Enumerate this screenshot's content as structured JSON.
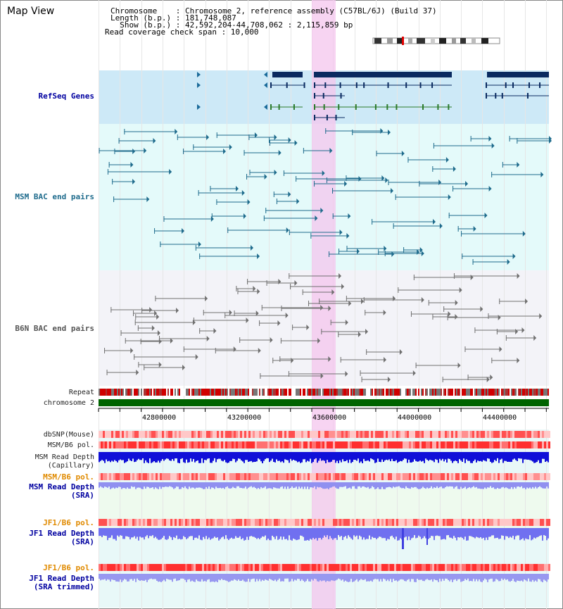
{
  "title": "Map View",
  "info": {
    "chromosome_line": "Chromosome    : Chromosome 2, reference assembly (C57BL/6J) (Build 37)",
    "length_line": "Length (b.p.) : 181,748,087",
    "show_line": "  Show (b.p.) : 42,592,204-44,708,062 : 2,115,859 bp",
    "coverage_line": "Read coverage check span : 10,000"
  },
  "tracks": {
    "refseq": "RefSeq Genes",
    "msm_bac": "MSM BAC end pairs",
    "b6n_bac": "B6N BAC end pairs",
    "repeat": "Repeat",
    "chromosome": "chromosome 2",
    "dbsnp": "dbSNP(Mouse)",
    "msm_b6_pol": "MSM/B6 pol.",
    "msm_depth_cap_1": "MSM Read Depth",
    "msm_depth_cap_2": "(Capillary)",
    "msm_b6_pol_sra": "MSM/B6 pol.",
    "msm_depth_sra_1": "MSM Read Depth",
    "msm_depth_sra_2": "(SRA)",
    "jf1_b6_pol": "JF1/B6 pol.",
    "jf1_depth_1": "JF1 Read Depth",
    "jf1_depth_2": "(SRA)",
    "jf1_b6_pol_trim": "JF1/B6 pol.",
    "jf1_trim_1": "JF1 Read Depth",
    "jf1_trim_2": "(SRA trimmed)"
  },
  "axis_ticks": [
    "42800000",
    "43200000",
    "43600000",
    "44000000",
    "44400000"
  ],
  "colors": {
    "refseq_bg": "#cde9f7",
    "msm_bg": "#e4fafa",
    "b6n_bg": "#f3f3f8",
    "highlight": "#f4c6ee",
    "gene": "#0a2a60",
    "msm_pair": "#1e6b8c",
    "b6n_pair": "#707070",
    "chromosome": "#006400",
    "depth": "#3030e0",
    "pol_orange": "#e08a00",
    "label_blue": "#0000a0"
  }
}
